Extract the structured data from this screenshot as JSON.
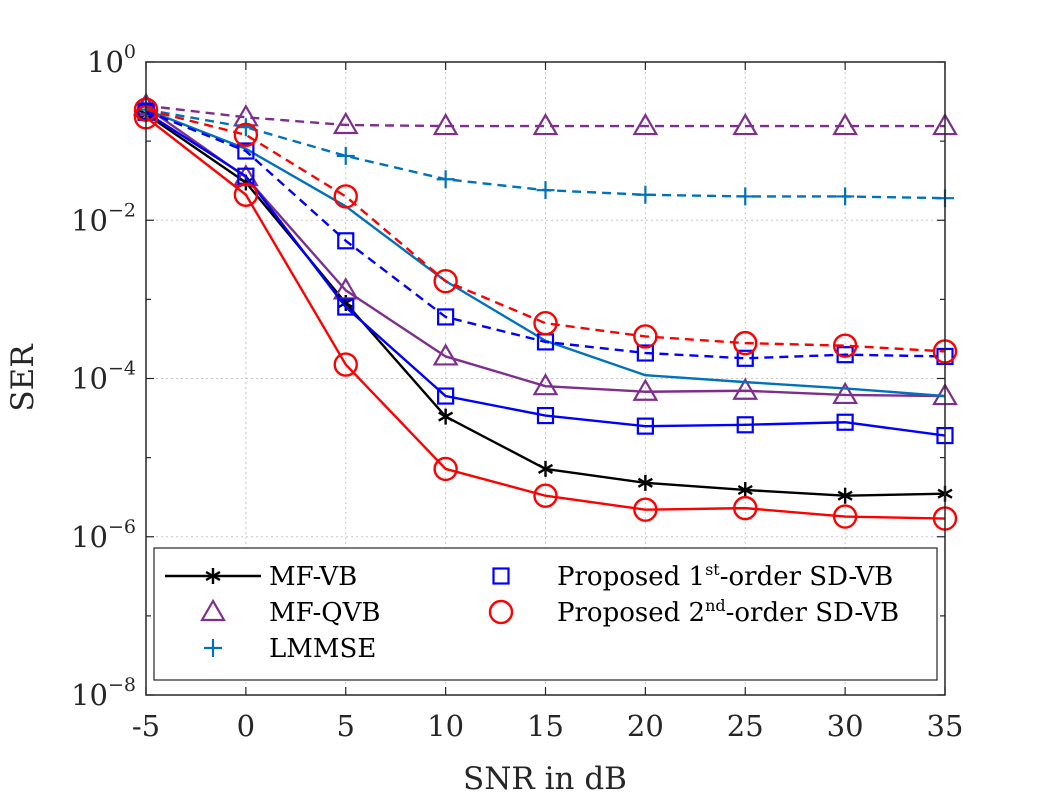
{
  "chart_data": {
    "type": "line",
    "title": "",
    "xlabel": "SNR in dB",
    "ylabel": "SER",
    "yscale": "log",
    "xlim": [
      -5,
      35
    ],
    "ylim_exponents": [
      -8,
      0
    ],
    "grid": true,
    "legend_position": "bottom-left",
    "x": [
      -5,
      0,
      5,
      10,
      15,
      20,
      25,
      30,
      35
    ],
    "x_tick_labels": [
      "-5",
      "0",
      "5",
      "10",
      "15",
      "20",
      "25",
      "30",
      "35"
    ],
    "y_ticks": [
      {
        "base": "10",
        "exp": "0"
      },
      {
        "base": "10",
        "exp": "−2"
      },
      {
        "base": "10",
        "exp": "−4"
      },
      {
        "base": "10",
        "exp": "−6"
      },
      {
        "base": "10",
        "exp": "−8"
      }
    ],
    "y_tick_exponent_values": [
      0,
      -2,
      -4,
      -6,
      -8
    ],
    "series": [
      {
        "name": "MF-VB",
        "color": "#000000",
        "marker": "asterisk",
        "dash": "solid",
        "values": [
          0.22,
          0.03,
          0.0009,
          3.3e-05,
          7.2e-06,
          4.8e-06,
          3.9e-06,
          3.3e-06,
          3.5e-06
        ]
      },
      {
        "name": "MF-QVB (dashed)",
        "color": "#7E2F8E",
        "marker": "triangle",
        "dash": "dashed",
        "values": [
          0.28,
          0.2,
          0.16,
          0.155,
          0.155,
          0.155,
          0.155,
          0.155,
          0.155
        ]
      },
      {
        "name": "MF-QVB",
        "color": "#7E2F8E",
        "marker": "triangle",
        "dash": "solid",
        "values": [
          0.27,
          0.035,
          0.0013,
          0.00019,
          8e-05,
          6.8e-05,
          7e-05,
          6.2e-05,
          6e-05
        ]
      },
      {
        "name": "LMMSE (dashed)",
        "color": "#0072BD",
        "marker": "plus",
        "dash": "dashed",
        "values": [
          0.25,
          0.15,
          0.065,
          0.033,
          0.024,
          0.021,
          0.02,
          0.02,
          0.019
        ]
      },
      {
        "name": "LMMSE",
        "color": "#0072BD",
        "marker": "none",
        "dash": "solid",
        "values": [
          0.25,
          0.08,
          0.015,
          0.0017,
          0.0003,
          0.00011,
          9e-05,
          7.5e-05,
          6e-05
        ]
      },
      {
        "name": "Proposed 1st-order SD-VB (dashed)",
        "color": "#0000FF",
        "marker": "square",
        "dash": "dashed",
        "values": [
          0.24,
          0.075,
          0.0055,
          0.0006,
          0.00029,
          0.00021,
          0.00018,
          0.0002,
          0.00019
        ]
      },
      {
        "name": "Proposed 1st-order SD-VB",
        "color": "#0000FF",
        "marker": "square",
        "dash": "solid",
        "values": [
          0.23,
          0.036,
          0.0008,
          6e-05,
          3.4e-05,
          2.5e-05,
          2.6e-05,
          2.8e-05,
          1.9e-05
        ]
      },
      {
        "name": "Proposed 2nd-order SD-VB (dashed)",
        "color": "#FF0000",
        "marker": "circle",
        "dash": "dashed",
        "values": [
          0.25,
          0.12,
          0.02,
          0.0017,
          0.0005,
          0.00034,
          0.00028,
          0.00026,
          0.00022
        ]
      },
      {
        "name": "Proposed 2nd-order SD-VB",
        "color": "#FF0000",
        "marker": "circle",
        "dash": "solid",
        "values": [
          0.2,
          0.021,
          0.00015,
          7.2e-06,
          3.3e-06,
          2.2e-06,
          2.3e-06,
          1.8e-06,
          1.7e-06
        ]
      }
    ],
    "legend": [
      {
        "text": "MF-VB",
        "marker": "asterisk",
        "color": "#000000",
        "line": true
      },
      {
        "text": "MF-QVB",
        "marker": "triangle",
        "color": "#7E2F8E",
        "line": false
      },
      {
        "text": "LMMSE",
        "marker": "plus",
        "color": "#0072BD",
        "line": false
      },
      {
        "text": "Proposed 1",
        "sup": "st",
        "tail": "-order SD-VB",
        "marker": "square",
        "color": "#0000FF",
        "line": false
      },
      {
        "text": "Proposed 2",
        "sup": "nd",
        "tail": "-order SD-VB",
        "marker": "circle",
        "color": "#FF0000",
        "line": false
      }
    ]
  }
}
